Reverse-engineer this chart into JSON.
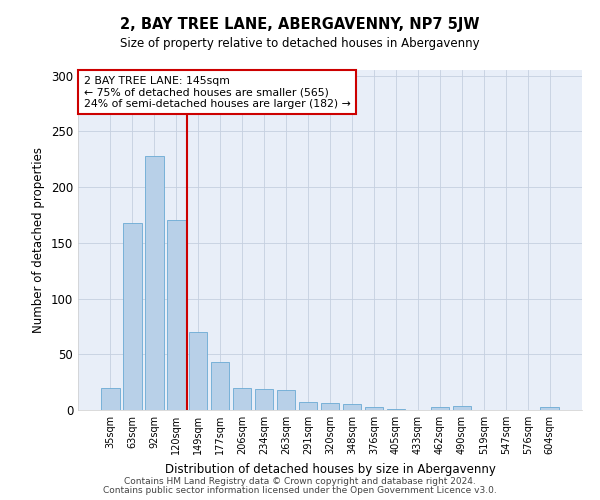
{
  "title1": "2, BAY TREE LANE, ABERGAVENNY, NP7 5JW",
  "title2": "Size of property relative to detached houses in Abergavenny",
  "xlabel": "Distribution of detached houses by size in Abergavenny",
  "ylabel": "Number of detached properties",
  "categories": [
    "35sqm",
    "63sqm",
    "92sqm",
    "120sqm",
    "149sqm",
    "177sqm",
    "206sqm",
    "234sqm",
    "263sqm",
    "291sqm",
    "320sqm",
    "348sqm",
    "376sqm",
    "405sqm",
    "433sqm",
    "462sqm",
    "490sqm",
    "519sqm",
    "547sqm",
    "576sqm",
    "604sqm"
  ],
  "values": [
    20,
    168,
    228,
    170,
    70,
    43,
    20,
    19,
    18,
    7,
    6,
    5,
    3,
    1,
    0,
    3,
    4,
    0,
    0,
    0,
    3
  ],
  "bar_color": "#b8d0e8",
  "bar_edgecolor": "#6aaad4",
  "vline_color": "#cc0000",
  "annotation_text": "2 BAY TREE LANE: 145sqm\n← 75% of detached houses are smaller (565)\n24% of semi-detached houses are larger (182) →",
  "annotation_box_color": "#ffffff",
  "annotation_box_edgecolor": "#cc0000",
  "footer1": "Contains HM Land Registry data © Crown copyright and database right 2024.",
  "footer2": "Contains public sector information licensed under the Open Government Licence v3.0.",
  "background_color": "#e8eef8",
  "ylim": [
    0,
    305
  ],
  "yticks": [
    0,
    50,
    100,
    150,
    200,
    250,
    300
  ]
}
